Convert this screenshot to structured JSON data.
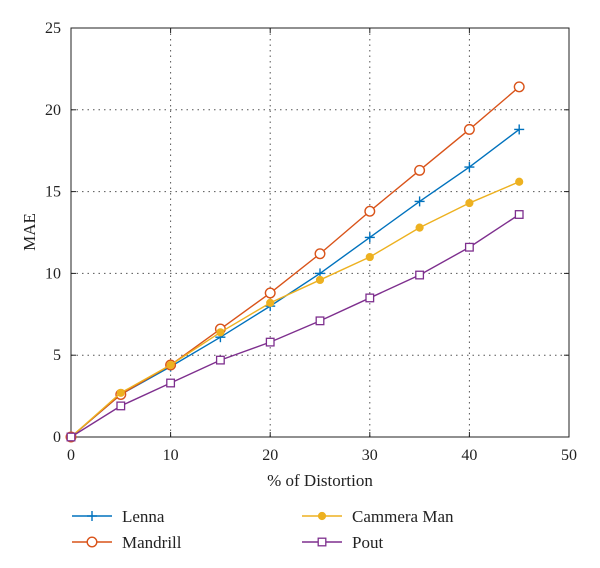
{
  "chart_data": {
    "type": "line",
    "title": "",
    "xlabel": "% of Distortion",
    "ylabel": "MAE",
    "xlim": [
      0,
      50
    ],
    "ylim": [
      0,
      25
    ],
    "xticks": [
      0,
      10,
      20,
      30,
      40,
      50
    ],
    "yticks": [
      0,
      5,
      10,
      15,
      20,
      25
    ],
    "grid": "dotted",
    "legend_position": "bottom",
    "x": [
      0,
      5,
      10,
      15,
      20,
      25,
      30,
      35,
      40,
      45
    ],
    "series": [
      {
        "name": "Lenna",
        "color": "#0072bd",
        "marker": "plus",
        "values": [
          0,
          2.6,
          4.3,
          6.1,
          8.0,
          10.0,
          12.2,
          14.4,
          16.5,
          18.8
        ]
      },
      {
        "name": "Mandrill",
        "color": "#d95319",
        "marker": "circle",
        "values": [
          0,
          2.6,
          4.4,
          6.6,
          8.8,
          11.2,
          13.8,
          16.3,
          18.8,
          21.4
        ]
      },
      {
        "name": "Cammera Man",
        "color": "#edb120",
        "marker": "dot",
        "values": [
          0,
          2.7,
          4.4,
          6.4,
          8.2,
          9.6,
          11.0,
          12.8,
          14.3,
          15.6
        ]
      },
      {
        "name": "Pout",
        "color": "#7e2f8e",
        "marker": "square",
        "values": [
          0,
          1.9,
          3.3,
          4.7,
          5.8,
          7.1,
          8.5,
          9.9,
          11.6,
          13.6
        ]
      }
    ]
  }
}
